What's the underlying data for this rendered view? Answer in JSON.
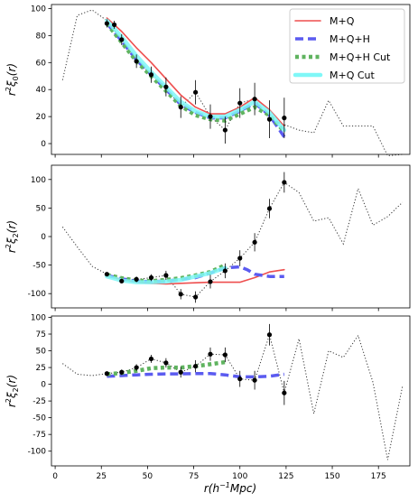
{
  "chart_data": [
    {
      "type": "line",
      "panel": "top",
      "ylabel": "r²ξ₀(r)",
      "ylabel_parts": {
        "base": "r",
        "sup": "2",
        "xi": "ξ",
        "sub": "0",
        "arg": "(r)"
      },
      "xlim": [
        -2,
        192
      ],
      "ylim": [
        -8,
        103
      ],
      "yticks": [
        0,
        20,
        40,
        60,
        80,
        100
      ],
      "legend": {
        "placement": "top-right",
        "entries": [
          "M+Q",
          "M+Q+H",
          "M+Q+H Cut",
          "M+Q Cut"
        ]
      },
      "dotted": {
        "x": [
          4,
          12,
          20,
          28,
          36,
          44,
          52,
          60,
          68,
          76,
          84,
          92,
          100,
          108,
          116,
          124,
          132,
          140,
          148,
          156,
          164,
          172,
          180,
          188
        ],
        "y": [
          47,
          95,
          99,
          91,
          77,
          62,
          51,
          42,
          27,
          38,
          20,
          10,
          30,
          33,
          18,
          14,
          10,
          8,
          32,
          13,
          13,
          13,
          -9,
          -8
        ]
      },
      "points": {
        "x": [
          28,
          32,
          36,
          44,
          52,
          60,
          68,
          76,
          84,
          92,
          100,
          108,
          116,
          124
        ],
        "y": [
          89,
          88,
          77,
          61,
          51,
          42,
          27,
          38,
          20,
          10,
          30,
          33,
          18,
          19
        ],
        "err": [
          3,
          3,
          4,
          5,
          6,
          7,
          8,
          9,
          9,
          10,
          11,
          12,
          14,
          15
        ]
      },
      "series": [
        {
          "name": "M+Q",
          "color": "#ee4e4e",
          "style": "solid",
          "x": [
            28,
            36,
            44,
            52,
            60,
            68,
            76,
            84,
            92,
            100,
            108,
            116,
            124
          ],
          "y": [
            93,
            83,
            71,
            60,
            48,
            36,
            27,
            22,
            22,
            27,
            34,
            25,
            13
          ]
        },
        {
          "name": "M+Q+H",
          "color": "#5b5bf0",
          "style": "dashed",
          "x": [
            28,
            36,
            44,
            52,
            60,
            68,
            76,
            84,
            92,
            100,
            108,
            116,
            124
          ],
          "y": [
            89,
            76,
            62,
            51,
            40,
            29,
            23,
            19,
            19,
            24,
            30,
            21,
            5
          ]
        },
        {
          "name": "M+Q+H Cut",
          "color": "#5fb35f",
          "style": "dotted",
          "x": [
            28,
            36,
            44,
            52,
            60,
            68,
            76,
            84,
            92,
            100,
            108,
            116,
            124
          ],
          "y": [
            89,
            75,
            61,
            50,
            39,
            28,
            21,
            18,
            17,
            22,
            27,
            21,
            9
          ]
        },
        {
          "name": "M+Q Cut",
          "color": "#7ff7f7",
          "style": "solid",
          "x": [
            28,
            36,
            44,
            52,
            60,
            68,
            76,
            84,
            92,
            100,
            108,
            116,
            124
          ],
          "y": [
            91,
            79,
            65,
            53,
            42,
            31,
            24,
            20,
            20,
            25,
            31,
            23,
            10
          ]
        }
      ]
    },
    {
      "type": "line",
      "panel": "middle",
      "ylabel": "r²ξ₂(r)",
      "ylabel_parts": {
        "base": "r",
        "sup": "2",
        "xi": "ξ",
        "sub": "2",
        "arg": "(r)"
      },
      "xlim": [
        -2,
        192
      ],
      "ylim": [
        -125,
        125
      ],
      "yticks": [
        -100,
        -50,
        0,
        50,
        100
      ],
      "dotted": {
        "x": [
          4,
          12,
          20,
          28,
          36,
          44,
          52,
          60,
          68,
          76,
          84,
          92,
          100,
          108,
          116,
          124,
          132,
          140,
          148,
          156,
          164,
          172,
          180,
          188
        ],
        "y": [
          17,
          -18,
          -52,
          -66,
          -78,
          -75,
          -72,
          -68,
          -101,
          -106,
          -79,
          -60,
          -38,
          -10,
          49,
          95,
          77,
          27,
          33,
          -13,
          84,
          20,
          35,
          60
        ]
      },
      "points": {
        "x": [
          28,
          36,
          44,
          52,
          60,
          68,
          76,
          84,
          92,
          100,
          108,
          116,
          124
        ],
        "y": [
          -66,
          -78,
          -75,
          -72,
          -68,
          -101,
          -106,
          -79,
          -60,
          -38,
          -10,
          49,
          95
        ],
        "err": [
          3,
          4,
          5,
          6,
          8,
          9,
          10,
          12,
          13,
          14,
          16,
          17,
          18
        ]
      },
      "series": [
        {
          "name": "M+Q",
          "color": "#ee4e4e",
          "style": "solid",
          "x": [
            28,
            36,
            44,
            52,
            60,
            68,
            76,
            84,
            92,
            100,
            108,
            116,
            124
          ],
          "y": [
            -68,
            -75,
            -80,
            -82,
            -83,
            -82,
            -81,
            -80,
            -80,
            -80,
            -72,
            -62,
            -58
          ]
        },
        {
          "name": "M+Q+H",
          "color": "#5b5bf0",
          "style": "dashed",
          "x": [
            28,
            36,
            44,
            52,
            60,
            68,
            76,
            84,
            92,
            100,
            104,
            108,
            116,
            124
          ],
          "y": [
            -68,
            -74,
            -78,
            -79,
            -78,
            -75,
            -72,
            -64,
            -55,
            -53,
            -58,
            -66,
            -70,
            -70
          ]
        },
        {
          "name": "M+Q+H Cut",
          "color": "#5fb35f",
          "style": "dotted",
          "x": [
            28,
            36,
            44,
            52,
            60,
            68,
            76,
            84,
            92
          ],
          "y": [
            -67,
            -73,
            -77,
            -78,
            -76,
            -73,
            -68,
            -62,
            -50
          ]
        },
        {
          "name": "M+Q Cut",
          "color": "#7ff7f7",
          "style": "solid",
          "x": [
            28,
            36,
            44,
            52,
            60,
            68,
            76,
            84,
            92
          ],
          "y": [
            -70,
            -77,
            -80,
            -80,
            -79,
            -76,
            -70,
            -64,
            -55
          ]
        }
      ]
    },
    {
      "type": "line",
      "panel": "bottom",
      "ylabel": "r²ξ₂(r)",
      "ylabel_parts": {
        "base": "r",
        "sup": "2",
        "xi": "ξ",
        "sub": "2",
        "arg": "(r)"
      },
      "xlabel": "r(h⁻¹Mpc)",
      "xlabel_parts": {
        "pre": "r(h",
        "sup": "−1",
        "post": "Mpc)"
      },
      "xlim": [
        -2,
        192
      ],
      "xticks": [
        0,
        25,
        50,
        75,
        100,
        125,
        150,
        175
      ],
      "ylim": [
        -122,
        102
      ],
      "yticks": [
        -100,
        -75,
        -50,
        -25,
        0,
        25,
        50,
        75,
        100
      ],
      "dotted": {
        "x": [
          4,
          12,
          20,
          28,
          36,
          44,
          52,
          60,
          68,
          76,
          84,
          92,
          100,
          108,
          116,
          124,
          132,
          140,
          148,
          156,
          164,
          172,
          180,
          188
        ],
        "y": [
          31,
          15,
          13,
          16,
          18,
          25,
          38,
          32,
          18,
          27,
          45,
          44,
          8,
          6,
          74,
          -13,
          68,
          -44,
          50,
          40,
          73,
          3,
          -113,
          -3
        ]
      },
      "points": {
        "x": [
          28,
          36,
          44,
          52,
          60,
          68,
          76,
          84,
          92,
          100,
          108,
          116,
          124
        ],
        "y": [
          16,
          18,
          25,
          38,
          32,
          18,
          27,
          45,
          44,
          8,
          6,
          74,
          -13
        ],
        "err": [
          3,
          4,
          5,
          6,
          7,
          8,
          9,
          10,
          11,
          12,
          14,
          16,
          18
        ]
      },
      "series": [
        {
          "name": "M+Q+H",
          "color": "#5b5bf0",
          "style": "dashed",
          "x": [
            28,
            36,
            44,
            52,
            60,
            68,
            76,
            84,
            92,
            100,
            108,
            116,
            124
          ],
          "y": [
            12,
            13,
            14,
            15,
            15.5,
            15.5,
            16,
            16,
            14,
            11,
            11,
            12,
            15
          ]
        },
        {
          "name": "M+Q+H Cut",
          "color": "#5fb35f",
          "style": "dotted",
          "x": [
            28,
            36,
            44,
            52,
            60,
            68,
            76,
            84,
            92
          ],
          "y": [
            15,
            17,
            20,
            24,
            25,
            25,
            27,
            30,
            33
          ]
        }
      ]
    }
  ]
}
